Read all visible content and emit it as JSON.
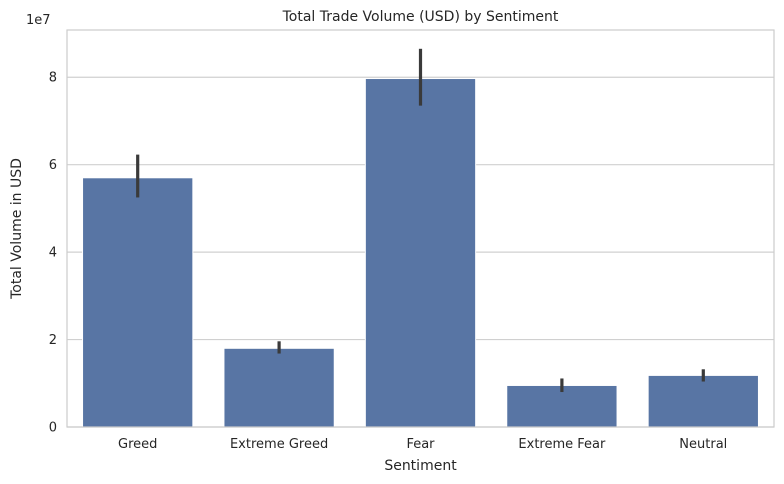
{
  "chart_data": {
    "type": "bar",
    "title": "Total Trade Volume (USD) by Sentiment",
    "xlabel": "Sentiment",
    "ylabel": "Total Volume in USD",
    "y_offset_label": "1e7",
    "y_tick_multiplier": 10000000,
    "categories": [
      "Greed",
      "Extreme Greed",
      "Fear",
      "Extreme Fear",
      "Neutral"
    ],
    "values": [
      57000000,
      18000000,
      79700000,
      9500000,
      11800000
    ],
    "error_low": [
      52500000,
      16800000,
      73500000,
      8000000,
      10400000
    ],
    "error_high": [
      62300000,
      19600000,
      86500000,
      11100000,
      13200000
    ],
    "y_ticks": [
      0,
      20000000,
      40000000,
      60000000,
      80000000
    ],
    "y_tick_labels": [
      "0",
      "2",
      "4",
      "6",
      "8"
    ],
    "ylim": [
      0,
      90800000
    ],
    "grid": true,
    "colors": {
      "bar": "#5875a4",
      "error_bar": "#3a3a3a",
      "grid": "#d0d0d0",
      "spine": "#cccccc"
    }
  }
}
